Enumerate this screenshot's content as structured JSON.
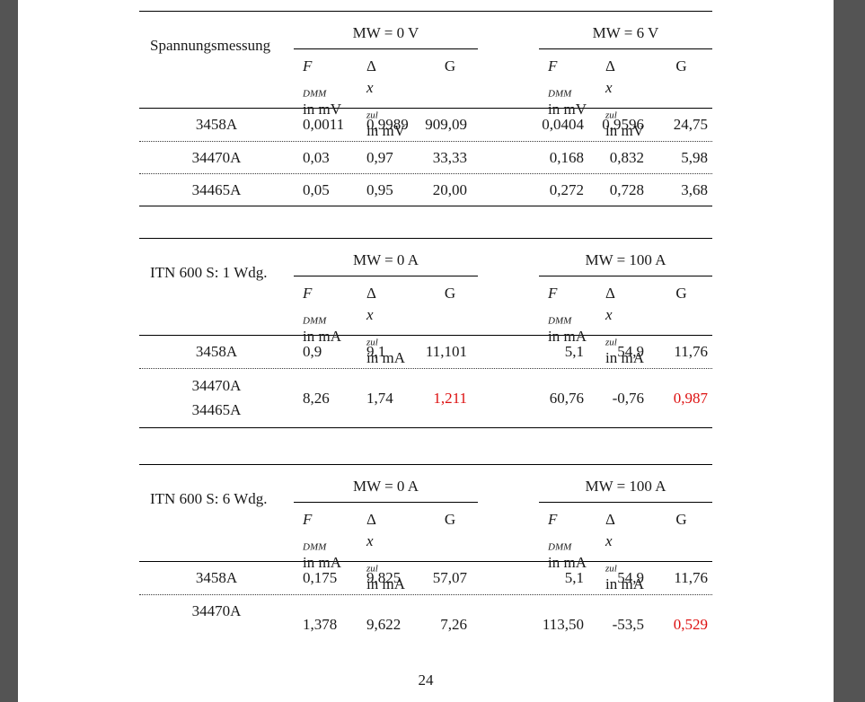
{
  "colors": {
    "frame_gray": "#545454",
    "page_white": "#ffffff",
    "accent_red": "#dd1111"
  },
  "page_number": "24",
  "col_headers": {
    "f_main": "F",
    "f_sub": "DMM",
    "dx_delta": "Δ",
    "dx_var": "x",
    "dx_sub": "zul",
    "g": "G"
  },
  "tables": [
    {
      "title": "Spannungsmessung",
      "unit": "in mV",
      "group_headers": [
        "MW = 0 V",
        "MW = 6 V"
      ],
      "rows": [
        {
          "labels": [
            "3458A"
          ],
          "values": [
            "0,0011",
            "0,9989",
            "909,09",
            "0,0404",
            "0,9596",
            "24,75"
          ],
          "red": []
        },
        {
          "labels": [
            "34470A"
          ],
          "values": [
            "0,03",
            "0,97",
            "33,33",
            "0,168",
            "0,832",
            "5,98"
          ],
          "red": []
        },
        {
          "labels": [
            "34465A"
          ],
          "values": [
            "0,05",
            "0,95",
            "20,00",
            "0,272",
            "0,728",
            "3,68"
          ],
          "red": []
        }
      ]
    },
    {
      "title": "ITN 600 S: 1 Wdg.",
      "unit": "in mA",
      "group_headers": [
        "MW = 0 A",
        "MW = 100 A"
      ],
      "rows": [
        {
          "labels": [
            "3458A"
          ],
          "values": [
            "0,9",
            "9,1",
            "11,101",
            "5,1",
            "54,9",
            "11,76"
          ],
          "red": []
        },
        {
          "labels": [
            "34470A",
            "34465A"
          ],
          "values": [
            "8,26",
            "1,74",
            "1,211",
            "60,76",
            "-0,76",
            "0,987"
          ],
          "red": [
            2,
            5
          ],
          "tall": true
        }
      ]
    },
    {
      "title": "ITN 600 S: 6 Wdg.",
      "unit": "in mA",
      "group_headers": [
        "MW = 0 A",
        "MW = 100 A"
      ],
      "rows": [
        {
          "labels": [
            "3458A"
          ],
          "values": [
            "0,175",
            "9,825",
            "57,07",
            "5,1",
            "54,9",
            "11,76"
          ],
          "red": []
        },
        {
          "labels": [
            "34470A"
          ],
          "values": [
            "1,378",
            "9,622",
            "7,26",
            "113,50",
            "-53,5",
            "0,529"
          ],
          "red": [
            5
          ],
          "tall": true,
          "label_top": true
        }
      ]
    }
  ]
}
